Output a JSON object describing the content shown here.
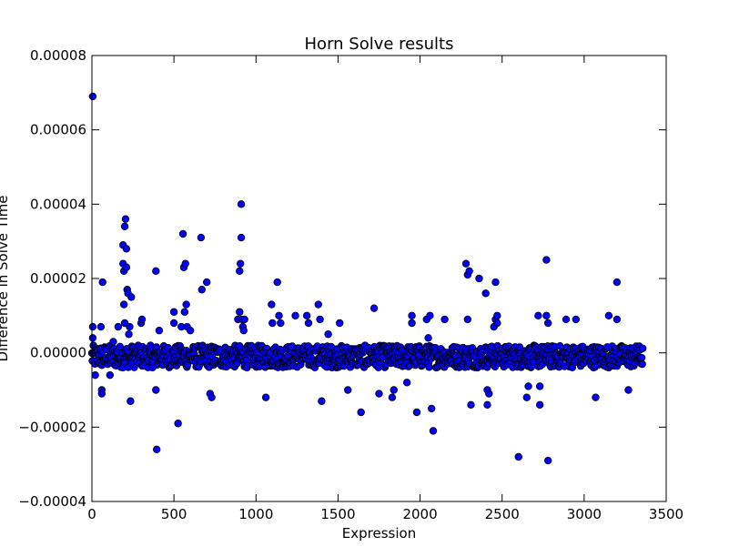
{
  "chart_data": {
    "type": "scatter",
    "title": "Horn Solve results",
    "xlabel": "Expression",
    "ylabel": "Difference in Solve Time",
    "xlim": [
      0,
      3500
    ],
    "ylim": [
      -4e-05,
      8e-05
    ],
    "xticks": [
      0,
      500,
      1000,
      1500,
      2000,
      2500,
      3000,
      3500
    ],
    "xtick_labels": [
      "0",
      "500",
      "1000",
      "1500",
      "2000",
      "2500",
      "3000",
      "3500"
    ],
    "yticks": [
      -4e-05,
      -2e-05,
      0,
      2e-05,
      4e-05,
      6e-05,
      8e-05
    ],
    "ytick_labels": [
      "−0.00004",
      "−0.00002",
      "0.00000",
      "0.00002",
      "0.00004",
      "0.00006",
      "0.00008"
    ],
    "grid": false,
    "marker_color": "#0000ff",
    "marker_edge": "#000000",
    "n_points": 3360,
    "baseline_band": [
      -4e-06,
      2e-06
    ],
    "series": [
      {
        "points": [
          [
            5,
            6.9e-05
          ],
          [
            5,
            7e-06
          ],
          [
            5,
            4e-06
          ],
          [
            20,
            -6e-06
          ],
          [
            55,
            7e-06
          ],
          [
            60,
            -1e-05
          ],
          [
            60,
            -1.1e-05
          ],
          [
            65,
            1.9e-05
          ],
          [
            110,
            -6e-06
          ],
          [
            130,
            3e-06
          ],
          [
            160,
            7e-06
          ],
          [
            190,
            2.9e-05
          ],
          [
            190,
            2.4e-05
          ],
          [
            195,
            2.2e-05
          ],
          [
            195,
            1.3e-05
          ],
          [
            200,
            3.4e-05
          ],
          [
            200,
            8e-06
          ],
          [
            205,
            3.6e-05
          ],
          [
            210,
            2.8e-05
          ],
          [
            210,
            2.3e-05
          ],
          [
            215,
            1.7e-05
          ],
          [
            220,
            1.6e-05
          ],
          [
            225,
            5e-06
          ],
          [
            230,
            7e-06
          ],
          [
            235,
            -1.3e-05
          ],
          [
            240,
            1.5e-05
          ],
          [
            300,
            8e-06
          ],
          [
            305,
            9e-06
          ],
          [
            390,
            2.2e-05
          ],
          [
            390,
            -1e-05
          ],
          [
            395,
            -2.6e-05
          ],
          [
            410,
            6e-06
          ],
          [
            500,
            1.1e-05
          ],
          [
            500,
            8e-06
          ],
          [
            525,
            -1.9e-05
          ],
          [
            545,
            7e-06
          ],
          [
            555,
            3.2e-05
          ],
          [
            560,
            2.3e-05
          ],
          [
            565,
            1.1e-05
          ],
          [
            570,
            2.4e-05
          ],
          [
            575,
            1.3e-05
          ],
          [
            580,
            7e-06
          ],
          [
            600,
            6e-06
          ],
          [
            665,
            3.1e-05
          ],
          [
            670,
            1.7e-05
          ],
          [
            700,
            1.9e-05
          ],
          [
            720,
            -1.1e-05
          ],
          [
            730,
            -1.2e-05
          ],
          [
            890,
            9e-06
          ],
          [
            900,
            1.1e-05
          ],
          [
            900,
            2.2e-05
          ],
          [
            905,
            2.4e-05
          ],
          [
            910,
            4e-05
          ],
          [
            910,
            3.1e-05
          ],
          [
            915,
            9e-06
          ],
          [
            920,
            7e-06
          ],
          [
            925,
            6e-06
          ],
          [
            930,
            9e-06
          ],
          [
            1060,
            -1.2e-05
          ],
          [
            1095,
            1.3e-05
          ],
          [
            1100,
            8e-06
          ],
          [
            1130,
            1.9e-05
          ],
          [
            1140,
            1e-05
          ],
          [
            1150,
            8e-06
          ],
          [
            1240,
            1e-05
          ],
          [
            1310,
            1e-05
          ],
          [
            1320,
            8e-06
          ],
          [
            1380,
            1.3e-05
          ],
          [
            1390,
            9e-06
          ],
          [
            1400,
            -1.3e-05
          ],
          [
            1440,
            5e-06
          ],
          [
            1510,
            8e-06
          ],
          [
            1560,
            -1e-05
          ],
          [
            1640,
            -1.6e-05
          ],
          [
            1720,
            1.2e-05
          ],
          [
            1750,
            -1.1e-05
          ],
          [
            1830,
            -1.2e-05
          ],
          [
            1840,
            -1e-05
          ],
          [
            1920,
            -8e-06
          ],
          [
            1950,
            1e-05
          ],
          [
            1950,
            8e-06
          ],
          [
            1980,
            -1.6e-05
          ],
          [
            2040,
            9e-06
          ],
          [
            2050,
            4e-06
          ],
          [
            2060,
            1e-05
          ],
          [
            2070,
            -1.5e-05
          ],
          [
            2080,
            -2.1e-05
          ],
          [
            2150,
            9e-06
          ],
          [
            2280,
            2.4e-05
          ],
          [
            2290,
            2.1e-05
          ],
          [
            2290,
            9e-06
          ],
          [
            2300,
            2.2e-05
          ],
          [
            2310,
            -1.4e-05
          ],
          [
            2360,
            2e-05
          ],
          [
            2400,
            1.6e-05
          ],
          [
            2410,
            -1e-05
          ],
          [
            2410,
            -1.4e-05
          ],
          [
            2420,
            -1.1e-05
          ],
          [
            2450,
            7e-06
          ],
          [
            2460,
            1.9e-05
          ],
          [
            2460,
            9e-06
          ],
          [
            2470,
            1e-05
          ],
          [
            2470,
            8e-06
          ],
          [
            2600,
            -2.8e-05
          ],
          [
            2650,
            -1.2e-05
          ],
          [
            2660,
            -9e-06
          ],
          [
            2720,
            1e-05
          ],
          [
            2730,
            -9e-06
          ],
          [
            2730,
            -1.4e-05
          ],
          [
            2770,
            1e-05
          ],
          [
            2770,
            2.5e-05
          ],
          [
            2780,
            -2.9e-05
          ],
          [
            2780,
            8e-06
          ],
          [
            2890,
            9e-06
          ],
          [
            2950,
            9e-06
          ],
          [
            3070,
            -1.2e-05
          ],
          [
            3150,
            1e-05
          ],
          [
            3200,
            1.9e-05
          ],
          [
            3200,
            9e-06
          ],
          [
            3270,
            -1e-05
          ]
        ]
      }
    ]
  }
}
